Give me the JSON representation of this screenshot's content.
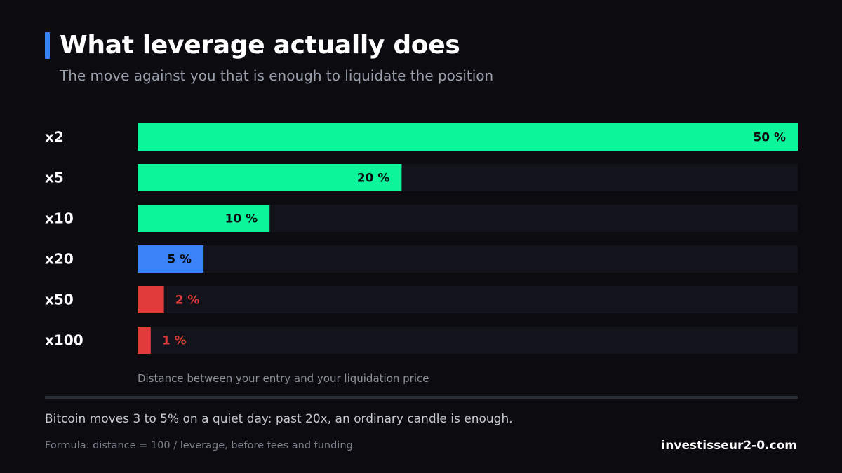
{
  "header": {
    "title": "What leverage actually does",
    "subtitle": "The move against you that is enough to liquidate the position"
  },
  "chart_data": {
    "type": "bar",
    "orientation": "horizontal",
    "categories": [
      "x2",
      "x5",
      "x10",
      "x20",
      "x50",
      "x100"
    ],
    "values": [
      50,
      20,
      10,
      5,
      2,
      1
    ],
    "value_labels": [
      "50 %",
      "20 %",
      "10 %",
      "5 %",
      "2 %",
      "1 %"
    ],
    "xlim": [
      0,
      50
    ],
    "xlabel": "Distance between your entry and your liquidation price",
    "grid": false,
    "legend": "none",
    "bar_colors": [
      "#0df59b",
      "#0df59b",
      "#0df59b",
      "#3b82f6",
      "#e03c3c",
      "#e03c3c"
    ],
    "track_color": "#13141b"
  },
  "footer": {
    "note": "Bitcoin moves 3 to 5% on a quiet day: past 20x, an ordinary candle is enough.",
    "formula": "Formula: distance = 100 / leverage, before fees and funding",
    "site": "investisseur2-0.com"
  },
  "colors": {
    "background": "#0b0b10",
    "accent": "#3b82f6",
    "text_dark": "#0b0b10",
    "text_light": "#ffffff"
  }
}
